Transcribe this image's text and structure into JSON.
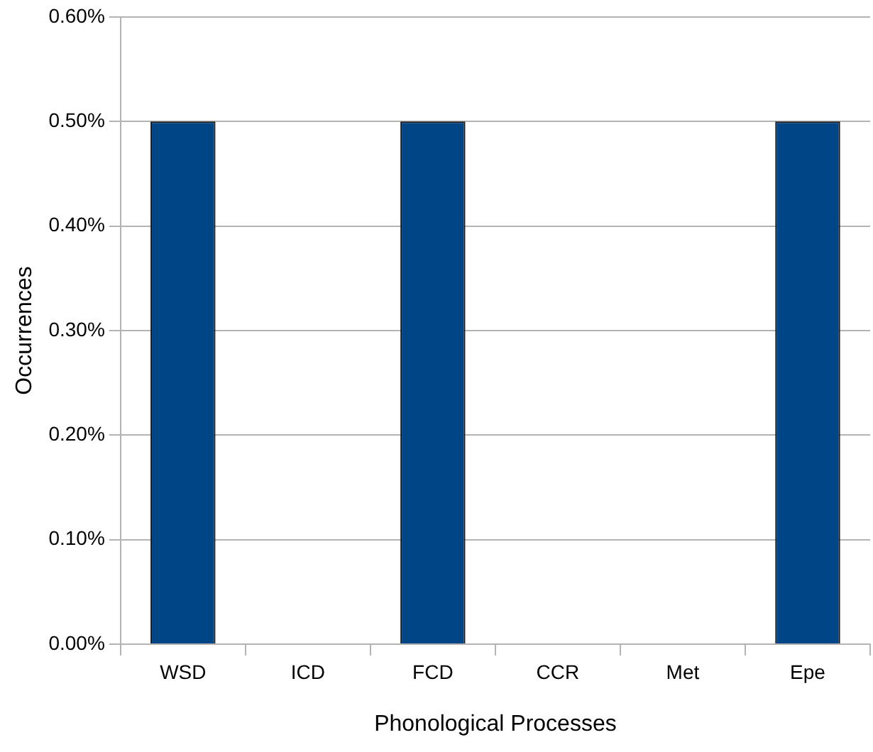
{
  "chart_data": {
    "type": "bar",
    "xlabel": "Phonological Processes",
    "ylabel": "Occurrences",
    "categories": [
      "WSD",
      "ICD",
      "FCD",
      "CCR",
      "Met",
      "Epe"
    ],
    "values": [
      0.5,
      0,
      0.5,
      0,
      0,
      0.5
    ],
    "color": "#004586",
    "ylim": [
      0,
      0.6
    ],
    "yticks": [
      {
        "value": 0,
        "label": "0.00%"
      },
      {
        "value": 0.1,
        "label": "0.10%"
      },
      {
        "value": 0.2,
        "label": "0.20%"
      },
      {
        "value": 0.3,
        "label": "0.30%"
      },
      {
        "value": 0.4,
        "label": "0.40%"
      },
      {
        "value": 0.5,
        "label": "0.50%"
      },
      {
        "value": 0.6,
        "label": "0.60%"
      }
    ],
    "grid": "y",
    "legend": false
  }
}
